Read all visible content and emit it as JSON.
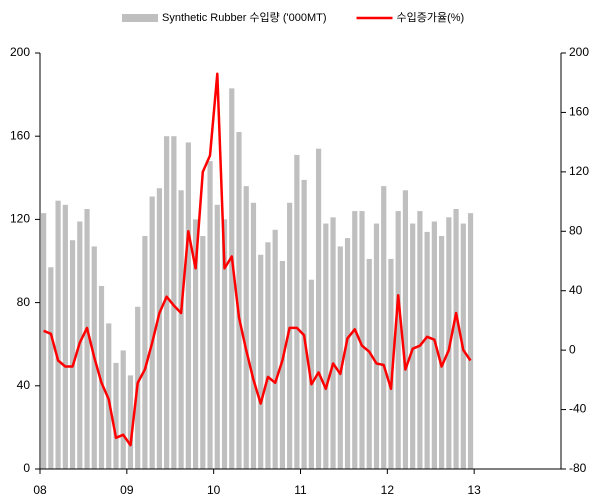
{
  "chart_data": {
    "type": "bar_line",
    "categories": [
      "08",
      null,
      null,
      null,
      null,
      null,
      null,
      null,
      null,
      null,
      null,
      null,
      "09",
      null,
      null,
      null,
      null,
      null,
      null,
      null,
      null,
      null,
      null,
      null,
      "10",
      null,
      null,
      null,
      null,
      null,
      null,
      null,
      null,
      null,
      null,
      null,
      "11",
      null,
      null,
      null,
      null,
      null,
      null,
      null,
      null,
      null,
      null,
      null,
      "12",
      null,
      null,
      null,
      null,
      null,
      null,
      null,
      null,
      null,
      null,
      null,
      "13",
      null,
      null,
      null,
      null,
      null,
      null,
      null,
      null,
      null,
      null,
      null
    ],
    "series": [
      {
        "name": "Synthetic Rubber 수입량 ('000MT)",
        "type": "bar",
        "color": "#bfbfbf",
        "values": [
          123,
          97,
          129,
          127,
          110,
          119,
          125,
          107,
          88,
          70,
          51,
          57,
          45,
          78,
          112,
          131,
          135,
          160,
          160,
          134,
          157,
          120,
          112,
          148,
          127,
          120,
          183,
          162,
          136,
          128,
          103,
          109,
          115,
          100,
          128,
          151,
          139,
          91,
          154,
          118,
          121,
          107,
          111,
          124,
          124,
          101,
          118,
          136,
          101,
          124,
          134,
          118,
          124,
          114,
          119,
          112,
          121,
          125,
          118,
          123,
          null,
          null,
          null,
          null,
          null,
          null,
          null,
          null,
          null,
          null,
          null,
          null
        ]
      },
      {
        "name": "수입증가율(%)",
        "type": "line",
        "axis": "y2",
        "color": "#ff0000",
        "values": [
          13,
          11,
          -7,
          -11,
          -11,
          5,
          15,
          -5,
          -22,
          -33,
          -59,
          -57,
          -64,
          -22,
          -13,
          5,
          25,
          36,
          30,
          25,
          80,
          55,
          120,
          131,
          186,
          55,
          63,
          22,
          0,
          -20,
          -36,
          -18,
          -22,
          -7,
          15,
          15,
          10,
          -23,
          -15,
          -26,
          -9,
          -16,
          8,
          14,
          3,
          -1,
          -9,
          -10,
          -26,
          37,
          -13,
          1,
          3,
          9,
          7,
          -11,
          0,
          25,
          0,
          -7,
          null,
          null,
          null,
          null,
          null,
          null,
          null,
          null,
          null,
          null,
          null,
          null
        ]
      }
    ],
    "ylim": [
      0,
      200
    ],
    "yticks": [
      0,
      40,
      80,
      120,
      160,
      200
    ],
    "y2lim": [
      -80,
      200
    ],
    "y2ticks": [
      -80,
      -40,
      0,
      40,
      80,
      120,
      160,
      200
    ],
    "legend": "top"
  }
}
